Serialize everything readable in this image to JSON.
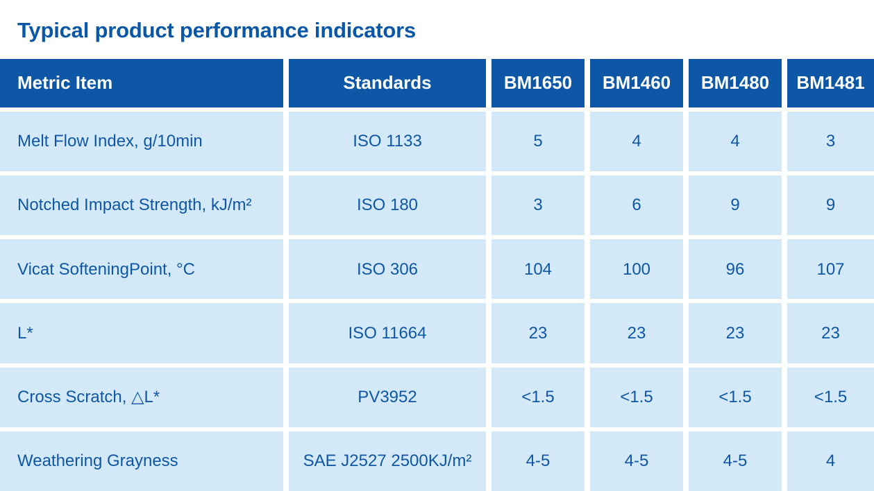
{
  "page": {
    "title": "Typical product performance indicators"
  },
  "colors": {
    "header_bg": "#0d57a6",
    "cell_bg": "#d3e9f8",
    "cell_text": "#0f57a4",
    "title_text": "#0b57a7",
    "header_text": "#ffffff",
    "gap_color": "#ffffff"
  },
  "table": {
    "columns": [
      "Metric Item",
      "Standards",
      "BM1650",
      "BM1460",
      "BM1480",
      "BM1481"
    ],
    "rows": [
      {
        "metric": "Melt Flow Index, g/10min",
        "standard": "ISO 1133",
        "values": [
          "5",
          "4",
          "4",
          "3"
        ]
      },
      {
        "metric": "Notched Impact Strength, kJ/m²",
        "standard": "ISO 180",
        "values": [
          "3",
          "6",
          "9",
          "9"
        ]
      },
      {
        "metric": "Vicat SofteningPoint, °C",
        "standard": "ISO 306",
        "values": [
          "104",
          "100",
          "96",
          "107"
        ]
      },
      {
        "metric": "L*",
        "standard": "ISO 11664",
        "values": [
          "23",
          "23",
          "23",
          "23"
        ]
      },
      {
        "metric": "Cross Scratch, △L*",
        "standard": "PV3952",
        "values": [
          "<1.5",
          "<1.5",
          "<1.5",
          "<1.5"
        ]
      },
      {
        "metric": "Weathering Grayness",
        "standard": "SAE J2527 2500KJ/m²",
        "values": [
          "4-5",
          "4-5",
          "4-5",
          "4"
        ]
      }
    ]
  }
}
